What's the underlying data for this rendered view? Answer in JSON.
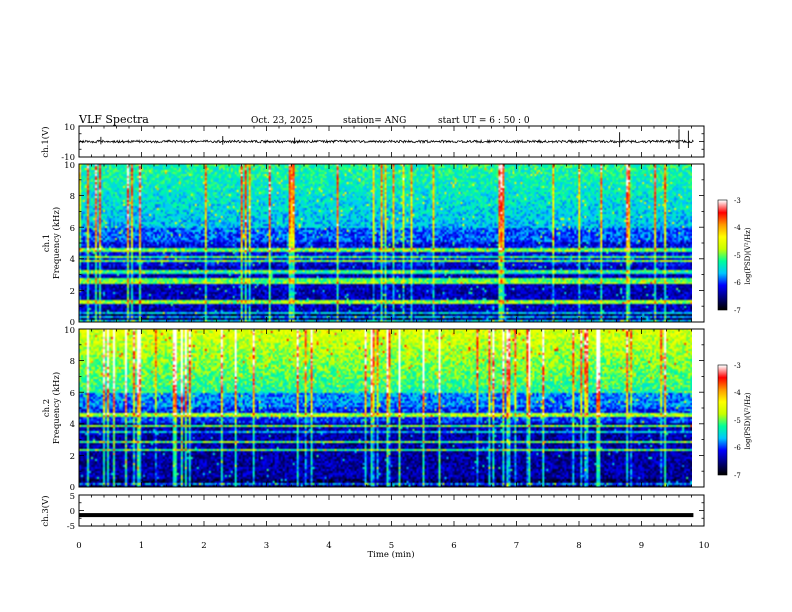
{
  "chart_data": {
    "type": "heatmap",
    "title": "VLF Spectra",
    "header": {
      "date": "Oct. 23, 2025",
      "station": "station= ANG",
      "start": "start  UT  =   6  : 50 : 0"
    },
    "xlabel": "Time  (min)",
    "xlim": [
      0,
      10
    ],
    "x_ticks": [
      "0",
      "1",
      "2",
      "3",
      "4",
      "5",
      "6",
      "7",
      "8",
      "9",
      "10"
    ],
    "panels": [
      {
        "id": "ch1-waveform",
        "type": "line",
        "ylabel": "ch.1(V)",
        "ylim": [
          -10,
          10
        ],
        "y_ticks": [
          "10",
          "-10"
        ],
        "baseline": 0
      },
      {
        "id": "ch1-spectrogram",
        "type": "heatmap",
        "ylabel_top": "ch.1",
        "ylabel": "Frequency  (kHz)",
        "ylim": [
          0,
          10
        ],
        "y_ticks": [
          "0",
          "2",
          "4",
          "6",
          "8",
          "10"
        ],
        "data_tmax_min": 9.83,
        "colorbar": {
          "label": "log(PSD)(V²/Hz)",
          "range": [
            -7,
            -3
          ],
          "ticks": [
            "-3",
            "-4",
            "-5",
            "-6",
            "-7"
          ]
        }
      },
      {
        "id": "ch2-spectrogram",
        "type": "heatmap",
        "ylabel_top": "ch.2",
        "ylabel": "Frequency  (kHz)",
        "ylim": [
          0,
          10
        ],
        "y_ticks": [
          "0",
          "2",
          "4",
          "6",
          "8",
          "10"
        ],
        "data_tmax_min": 9.83,
        "colorbar": {
          "label": "log(PSD)(V²/Hz)",
          "range": [
            -7,
            -3
          ],
          "ticks": [
            "-3",
            "-4",
            "-5",
            "-6",
            "-7"
          ]
        }
      },
      {
        "id": "ch3-waveform",
        "type": "line",
        "ylabel": "ch.3(V)",
        "ylim": [
          -5,
          5
        ],
        "y_ticks": [
          "5",
          "0",
          "-5"
        ],
        "baseline": -1.5
      }
    ],
    "colormap": [
      "#000000",
      "#00007f",
      "#0000ff",
      "#00c8ff",
      "#00ff9a",
      "#c8ff00",
      "#ffff00",
      "#ff9900",
      "#ff0000",
      "#ffffff"
    ]
  }
}
